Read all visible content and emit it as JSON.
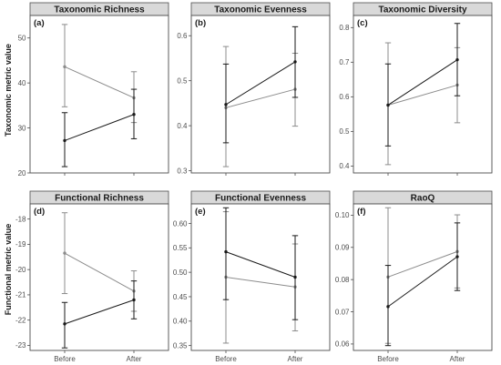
{
  "figure": {
    "y_axis_label_top": "Taxonomic metric value",
    "y_axis_label_bottom": "Functional metric value"
  },
  "colors": {
    "dark_series": "#1a1a1a",
    "light_series": "#8c8c8c",
    "strip_fill": "#d9d9d9",
    "frame": "#4d4d4d"
  },
  "chart_data": [
    {
      "type": "line",
      "title": "Taxonomic Richness",
      "panel_label": "(a)",
      "categories": [
        "Before",
        "After"
      ],
      "ylim": [
        20,
        55
      ],
      "yticks": [
        20,
        30,
        40,
        50
      ],
      "ytick_labels": [
        "20",
        "30",
        "40",
        "50"
      ],
      "series": [
        {
          "color_key": "light",
          "values": [
            43.6,
            36.7
          ],
          "lower": [
            34.7,
            31.2
          ],
          "upper": [
            53.0,
            42.5
          ]
        },
        {
          "color_key": "dark",
          "values": [
            27.2,
            33.0
          ],
          "lower": [
            21.4,
            27.6
          ],
          "upper": [
            33.4,
            38.6
          ]
        }
      ]
    },
    {
      "type": "line",
      "title": "Taxonomic Evenness",
      "panel_label": "(b)",
      "categories": [
        "Before",
        "After"
      ],
      "ylim": [
        0.295,
        0.645
      ],
      "yticks": [
        0.3,
        0.4,
        0.5,
        0.6
      ],
      "ytick_labels": [
        "0.3",
        "0.4",
        "0.5",
        "0.6"
      ],
      "series": [
        {
          "color_key": "light",
          "values": [
            0.44,
            0.481
          ],
          "lower": [
            0.309,
            0.399
          ],
          "upper": [
            0.576,
            0.561
          ]
        },
        {
          "color_key": "dark",
          "values": [
            0.447,
            0.542
          ],
          "lower": [
            0.362,
            0.463
          ],
          "upper": [
            0.537,
            0.62
          ]
        }
      ]
    },
    {
      "type": "line",
      "title": "Taxonomic Diversity",
      "panel_label": "(c)",
      "categories": [
        "Before",
        "After"
      ],
      "ylim": [
        0.38,
        0.835
      ],
      "yticks": [
        0.4,
        0.5,
        0.6,
        0.7,
        0.8
      ],
      "ytick_labels": [
        "0.4",
        "0.5",
        "0.6",
        "0.7",
        "0.8"
      ],
      "series": [
        {
          "color_key": "light",
          "values": [
            0.576,
            0.634
          ],
          "lower": [
            0.404,
            0.525
          ],
          "upper": [
            0.756,
            0.742
          ]
        },
        {
          "color_key": "dark",
          "values": [
            0.576,
            0.707
          ],
          "lower": [
            0.458,
            0.603
          ],
          "upper": [
            0.695,
            0.812
          ]
        }
      ]
    },
    {
      "type": "line",
      "title": "Functional Richness",
      "panel_label": "(d)",
      "categories": [
        "Before",
        "After"
      ],
      "ylim": [
        -23.2,
        -17.4
      ],
      "yticks": [
        -23,
        -22,
        -21,
        -20,
        -19,
        -18
      ],
      "ytick_labels": [
        "-23",
        "-22",
        "-21",
        "-20",
        "-19",
        "-18"
      ],
      "series": [
        {
          "color_key": "light",
          "values": [
            -19.35,
            -20.85
          ],
          "lower": [
            -20.95,
            -21.65
          ],
          "upper": [
            -17.75,
            -20.05
          ]
        },
        {
          "color_key": "dark",
          "values": [
            -22.15,
            -21.2
          ],
          "lower": [
            -23.1,
            -21.95
          ],
          "upper": [
            -21.3,
            -20.45
          ]
        }
      ]
    },
    {
      "type": "line",
      "title": "Functional Evenness",
      "panel_label": "(e)",
      "categories": [
        "Before",
        "After"
      ],
      "ylim": [
        0.34,
        0.64
      ],
      "yticks": [
        0.35,
        0.4,
        0.45,
        0.5,
        0.55,
        0.6
      ],
      "ytick_labels": [
        "0.35",
        "0.40",
        "0.45",
        "0.50",
        "0.55",
        "0.60"
      ],
      "series": [
        {
          "color_key": "light",
          "values": [
            0.49,
            0.47
          ],
          "lower": [
            0.355,
            0.38
          ],
          "upper": [
            0.624,
            0.558
          ]
        },
        {
          "color_key": "dark",
          "values": [
            0.542,
            0.49
          ],
          "lower": [
            0.444,
            0.403
          ],
          "upper": [
            0.632,
            0.575
          ]
        }
      ]
    },
    {
      "type": "line",
      "title": "RaoQ",
      "panel_label": "(f)",
      "categories": [
        "Before",
        "After"
      ],
      "ylim": [
        0.058,
        0.1035
      ],
      "yticks": [
        0.06,
        0.07,
        0.08,
        0.09,
        0.1
      ],
      "ytick_labels": [
        "0.06",
        "0.07",
        "0.08",
        "0.09",
        "0.10"
      ],
      "series": [
        {
          "color_key": "light",
          "values": [
            0.0808,
            0.0887
          ],
          "lower": [
            0.0602,
            0.0774
          ],
          "upper": [
            0.1023,
            0.1001
          ]
        },
        {
          "color_key": "dark",
          "values": [
            0.0716,
            0.0871
          ],
          "lower": [
            0.0595,
            0.0766
          ],
          "upper": [
            0.0844,
            0.0976
          ]
        }
      ]
    }
  ]
}
